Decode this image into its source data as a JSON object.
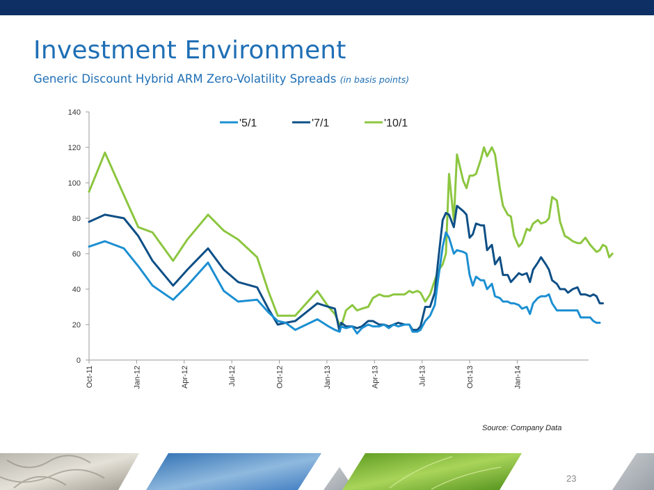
{
  "header": {
    "title": "Investment Environment",
    "subtitle": "Generic Discount Hybrid ARM Zero-Volatility Spreads",
    "subtitle_note": "(in basis points)"
  },
  "source": "Source: Company Data",
  "page_number": "23",
  "colors": {
    "banner": "#0d2f63",
    "title": "#1f6fb5",
    "series_5_1": "#1b8fd2",
    "series_7_1": "#0e4f86",
    "series_10_1": "#8cc63f"
  },
  "chart_data": {
    "type": "line",
    "title": "",
    "xlabel": "",
    "ylabel": "",
    "ylim": [
      0,
      140
    ],
    "yticks": [
      0,
      20,
      40,
      60,
      80,
      100,
      120,
      140
    ],
    "xlim": [
      0,
      31.5
    ],
    "xticks": [
      {
        "label": "Oct-11",
        "x": 0
      },
      {
        "label": "Jan-12",
        "x": 3
      },
      {
        "label": "Apr-12",
        "x": 6
      },
      {
        "label": "Jul-12",
        "x": 9
      },
      {
        "label": "Oct-12",
        "x": 12
      },
      {
        "label": "Jan-13",
        "x": 15
      },
      {
        "label": "Apr-13",
        "x": 18
      },
      {
        "label": "Jul-13",
        "x": 21
      },
      {
        "label": "Oct-13",
        "x": 24
      },
      {
        "label": "Jan-14",
        "x": 27
      }
    ],
    "legend_position": "top-center",
    "series": [
      {
        "name": "'5/1",
        "color": "#1b8fd2",
        "points": [
          [
            0,
            64
          ],
          [
            1,
            67
          ],
          [
            2.2,
            63
          ],
          [
            3.1,
            53
          ],
          [
            4,
            42
          ],
          [
            5.3,
            34
          ],
          [
            6.2,
            42
          ],
          [
            7.5,
            55
          ],
          [
            8.5,
            39
          ],
          [
            9.4,
            33
          ],
          [
            10.6,
            34
          ],
          [
            11.3,
            27
          ],
          [
            11.9,
            22
          ],
          [
            12.4,
            21
          ],
          [
            13,
            17
          ],
          [
            14.4,
            23
          ],
          [
            15.1,
            19
          ],
          [
            15.5,
            17
          ],
          [
            15.8,
            16
          ],
          [
            15.9,
            19
          ],
          [
            16.2,
            18
          ],
          [
            16.6,
            19
          ],
          [
            16.9,
            15
          ],
          [
            17.2,
            18
          ],
          [
            17.6,
            20
          ],
          [
            17.9,
            19
          ],
          [
            18.3,
            19
          ],
          [
            18.6,
            20
          ],
          [
            18.9,
            18
          ],
          [
            19.2,
            20
          ],
          [
            19.5,
            19
          ],
          [
            19.9,
            20
          ],
          [
            20.2,
            20
          ],
          [
            20.4,
            16
          ],
          [
            20.7,
            16
          ],
          [
            20.9,
            17
          ],
          [
            21.2,
            22
          ],
          [
            21.5,
            25
          ],
          [
            21.8,
            31
          ],
          [
            22,
            45
          ],
          [
            22.3,
            64
          ],
          [
            22.5,
            72
          ],
          [
            22.7,
            69
          ],
          [
            23,
            60
          ],
          [
            23.2,
            62
          ],
          [
            23.6,
            61
          ],
          [
            23.8,
            60
          ],
          [
            24,
            48
          ],
          [
            24.2,
            42
          ],
          [
            24.4,
            47
          ],
          [
            24.7,
            45
          ],
          [
            24.9,
            45
          ],
          [
            25.1,
            40
          ],
          [
            25.4,
            43
          ],
          [
            25.6,
            36
          ],
          [
            25.9,
            35
          ],
          [
            26.1,
            33
          ],
          [
            26.4,
            33
          ],
          [
            26.6,
            32
          ],
          [
            26.8,
            32
          ],
          [
            27.1,
            31
          ],
          [
            27.3,
            29
          ],
          [
            27.6,
            30
          ],
          [
            27.8,
            26
          ],
          [
            28,
            32
          ],
          [
            28.3,
            35
          ],
          [
            28.5,
            36
          ],
          [
            28.8,
            36
          ],
          [
            29,
            37
          ],
          [
            29.2,
            32
          ],
          [
            29.5,
            28
          ],
          [
            29.7,
            28
          ],
          [
            30,
            28
          ],
          [
            30.5,
            28
          ],
          [
            30.8,
            28
          ],
          [
            31,
            24
          ],
          [
            31.3,
            24
          ],
          [
            31.6,
            24
          ],
          [
            31.8,
            22
          ],
          [
            32,
            21
          ],
          [
            32.2,
            21
          ]
        ]
      },
      {
        "name": "'7/1",
        "color": "#0e4f86",
        "points": [
          [
            0,
            78
          ],
          [
            1,
            82
          ],
          [
            2.2,
            80
          ],
          [
            3.1,
            70
          ],
          [
            4,
            56
          ],
          [
            5.3,
            42
          ],
          [
            6.2,
            51
          ],
          [
            7.5,
            63
          ],
          [
            8.5,
            51
          ],
          [
            9.4,
            44
          ],
          [
            10.6,
            41
          ],
          [
            11.3,
            29
          ],
          [
            11.9,
            20
          ],
          [
            12.4,
            21
          ],
          [
            13,
            22
          ],
          [
            14.4,
            32
          ],
          [
            15.1,
            30
          ],
          [
            15.5,
            29
          ],
          [
            15.8,
            16
          ],
          [
            15.9,
            21
          ],
          [
            16.2,
            19
          ],
          [
            16.6,
            19
          ],
          [
            16.9,
            18
          ],
          [
            17.2,
            19
          ],
          [
            17.6,
            22
          ],
          [
            17.9,
            22
          ],
          [
            18.3,
            20
          ],
          [
            18.6,
            20
          ],
          [
            18.9,
            19
          ],
          [
            19.2,
            20
          ],
          [
            19.5,
            21
          ],
          [
            19.9,
            20
          ],
          [
            20.2,
            20
          ],
          [
            20.4,
            17
          ],
          [
            20.7,
            17
          ],
          [
            20.9,
            19
          ],
          [
            21.2,
            30
          ],
          [
            21.5,
            30
          ],
          [
            21.8,
            38
          ],
          [
            22,
            55
          ],
          [
            22.3,
            79
          ],
          [
            22.5,
            83
          ],
          [
            22.7,
            82
          ],
          [
            23,
            75
          ],
          [
            23.2,
            87
          ],
          [
            23.6,
            84
          ],
          [
            23.8,
            82
          ],
          [
            24,
            69
          ],
          [
            24.2,
            71
          ],
          [
            24.4,
            77
          ],
          [
            24.7,
            76
          ],
          [
            24.9,
            76
          ],
          [
            25.1,
            62
          ],
          [
            25.4,
            65
          ],
          [
            25.6,
            54
          ],
          [
            25.9,
            58
          ],
          [
            26.1,
            48
          ],
          [
            26.4,
            48
          ],
          [
            26.6,
            44
          ],
          [
            26.8,
            46
          ],
          [
            27.1,
            49
          ],
          [
            27.3,
            48
          ],
          [
            27.6,
            49
          ],
          [
            27.8,
            44
          ],
          [
            28,
            51
          ],
          [
            28.3,
            55
          ],
          [
            28.5,
            58
          ],
          [
            28.8,
            54
          ],
          [
            29,
            51
          ],
          [
            29.2,
            45
          ],
          [
            29.5,
            43
          ],
          [
            29.7,
            40
          ],
          [
            30,
            40
          ],
          [
            30.2,
            38
          ],
          [
            30.5,
            40
          ],
          [
            30.8,
            41
          ],
          [
            31,
            37
          ],
          [
            31.3,
            37
          ],
          [
            31.6,
            36
          ],
          [
            31.8,
            37
          ],
          [
            32,
            36
          ],
          [
            32.2,
            32
          ],
          [
            32.4,
            32
          ]
        ]
      },
      {
        "name": "'10/1",
        "color": "#8cc63f",
        "points": [
          [
            0,
            95
          ],
          [
            1,
            117
          ],
          [
            2.2,
            93
          ],
          [
            3.1,
            75
          ],
          [
            4,
            72
          ],
          [
            5.3,
            56
          ],
          [
            6.2,
            68
          ],
          [
            7.5,
            82
          ],
          [
            8.5,
            73
          ],
          [
            9.4,
            68
          ],
          [
            10.6,
            58
          ],
          [
            11.3,
            39
          ],
          [
            11.9,
            25
          ],
          [
            12.4,
            25
          ],
          [
            13,
            25
          ],
          [
            14.4,
            39
          ],
          [
            15.1,
            30
          ],
          [
            15.5,
            26
          ],
          [
            15.8,
            20
          ],
          [
            15.9,
            19
          ],
          [
            16.2,
            28
          ],
          [
            16.6,
            31
          ],
          [
            16.9,
            28
          ],
          [
            17.2,
            29
          ],
          [
            17.6,
            30
          ],
          [
            17.9,
            35
          ],
          [
            18.3,
            37
          ],
          [
            18.6,
            36
          ],
          [
            18.9,
            36
          ],
          [
            19.2,
            37
          ],
          [
            19.5,
            37
          ],
          [
            19.9,
            37
          ],
          [
            20.2,
            39
          ],
          [
            20.4,
            38
          ],
          [
            20.7,
            39
          ],
          [
            20.9,
            38
          ],
          [
            21.2,
            33
          ],
          [
            21.5,
            37
          ],
          [
            21.8,
            45
          ],
          [
            22,
            50
          ],
          [
            22.3,
            54
          ],
          [
            22.5,
            60
          ],
          [
            22.7,
            105
          ],
          [
            23,
            79
          ],
          [
            23.2,
            116
          ],
          [
            23.6,
            101
          ],
          [
            23.8,
            97
          ],
          [
            24,
            104
          ],
          [
            24.2,
            104
          ],
          [
            24.4,
            105
          ],
          [
            24.7,
            113
          ],
          [
            24.9,
            120
          ],
          [
            25.1,
            115
          ],
          [
            25.4,
            120
          ],
          [
            25.6,
            116
          ],
          [
            25.9,
            97
          ],
          [
            26.1,
            87
          ],
          [
            26.4,
            82
          ],
          [
            26.6,
            81
          ],
          [
            26.8,
            70
          ],
          [
            27.1,
            64
          ],
          [
            27.3,
            66
          ],
          [
            27.6,
            74
          ],
          [
            27.8,
            73
          ],
          [
            28,
            77
          ],
          [
            28.3,
            79
          ],
          [
            28.5,
            77
          ],
          [
            28.8,
            78
          ],
          [
            29,
            80
          ],
          [
            29.2,
            92
          ],
          [
            29.5,
            90
          ],
          [
            29.7,
            78
          ],
          [
            30,
            70
          ],
          [
            30.2,
            69
          ],
          [
            30.5,
            67
          ],
          [
            30.8,
            66
          ],
          [
            31,
            66
          ],
          [
            31.3,
            69
          ],
          [
            31.6,
            65
          ],
          [
            31.8,
            63
          ],
          [
            32,
            61
          ],
          [
            32.2,
            62
          ],
          [
            32.4,
            65
          ],
          [
            32.6,
            64
          ],
          [
            32.8,
            58
          ],
          [
            33,
            60
          ]
        ]
      }
    ]
  }
}
